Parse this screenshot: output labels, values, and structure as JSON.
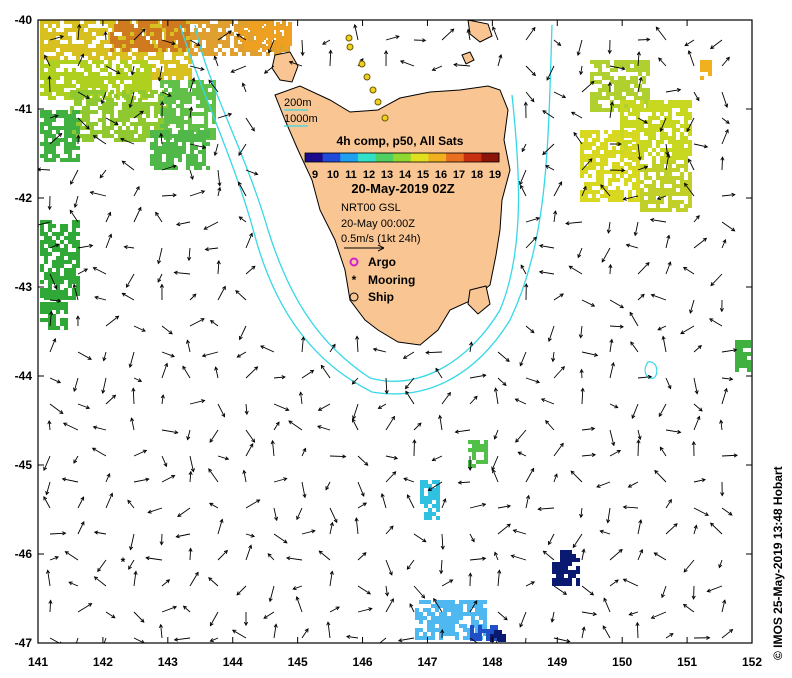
{
  "map": {
    "x_ticks": [
      "141",
      "142",
      "143",
      "144",
      "145",
      "146",
      "147",
      "148",
      "149",
      "150",
      "151",
      "152"
    ],
    "y_ticks": [
      "-40",
      "-41",
      "-42",
      "-43",
      "-44",
      "-45",
      "-46",
      "-47"
    ],
    "lon_range": [
      141,
      152
    ],
    "lat_range": [
      -47,
      -40
    ],
    "colors": {
      "land": "#f9c693",
      "land_outline": "#000000",
      "isobath": "#36d8e6",
      "arrow": "#000000",
      "argo": "#d020d0"
    }
  },
  "isobaths": [
    "200m",
    "1000m"
  ],
  "legend": {
    "title": "4h comp, p50, All Sats",
    "colorbar_ticks": [
      "9",
      "10",
      "11",
      "12",
      "13",
      "14",
      "15",
      "16",
      "17",
      "18",
      "19"
    ],
    "colorbar_colors": [
      "#1a0a8c",
      "#1f4bd8",
      "#20a0f0",
      "#30e0c8",
      "#50d060",
      "#90d830",
      "#e0e020",
      "#f0b020",
      "#e87020",
      "#c83010",
      "#8c1408"
    ],
    "date": "20-May-2019 02Z",
    "current_source": "NRT00 GSL",
    "current_time": "20-May 00:00Z",
    "arrow_scale": "0.5m/s (1kt 24h)",
    "markers": [
      {
        "label": "Argo",
        "symbol": "argo-icon"
      },
      {
        "label": "Mooring",
        "symbol": "mooring-icon"
      },
      {
        "label": "Ship",
        "symbol": "ship-icon"
      }
    ]
  },
  "credit": "© IMOS 25-May-2019 13:48 Hobart"
}
